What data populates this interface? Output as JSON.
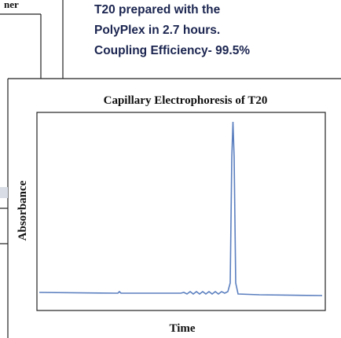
{
  "fragment": {
    "label": "ner"
  },
  "callout": {
    "lines": [
      "T20 prepared with the",
      "PolyPlex in 2.7 hours.",
      "Coupling Efficiency- 99.5%"
    ]
  },
  "figure": {
    "title": "Capillary Electrophoresis of T20",
    "y_label": "Absorbance",
    "x_label": "Time"
  }
}
